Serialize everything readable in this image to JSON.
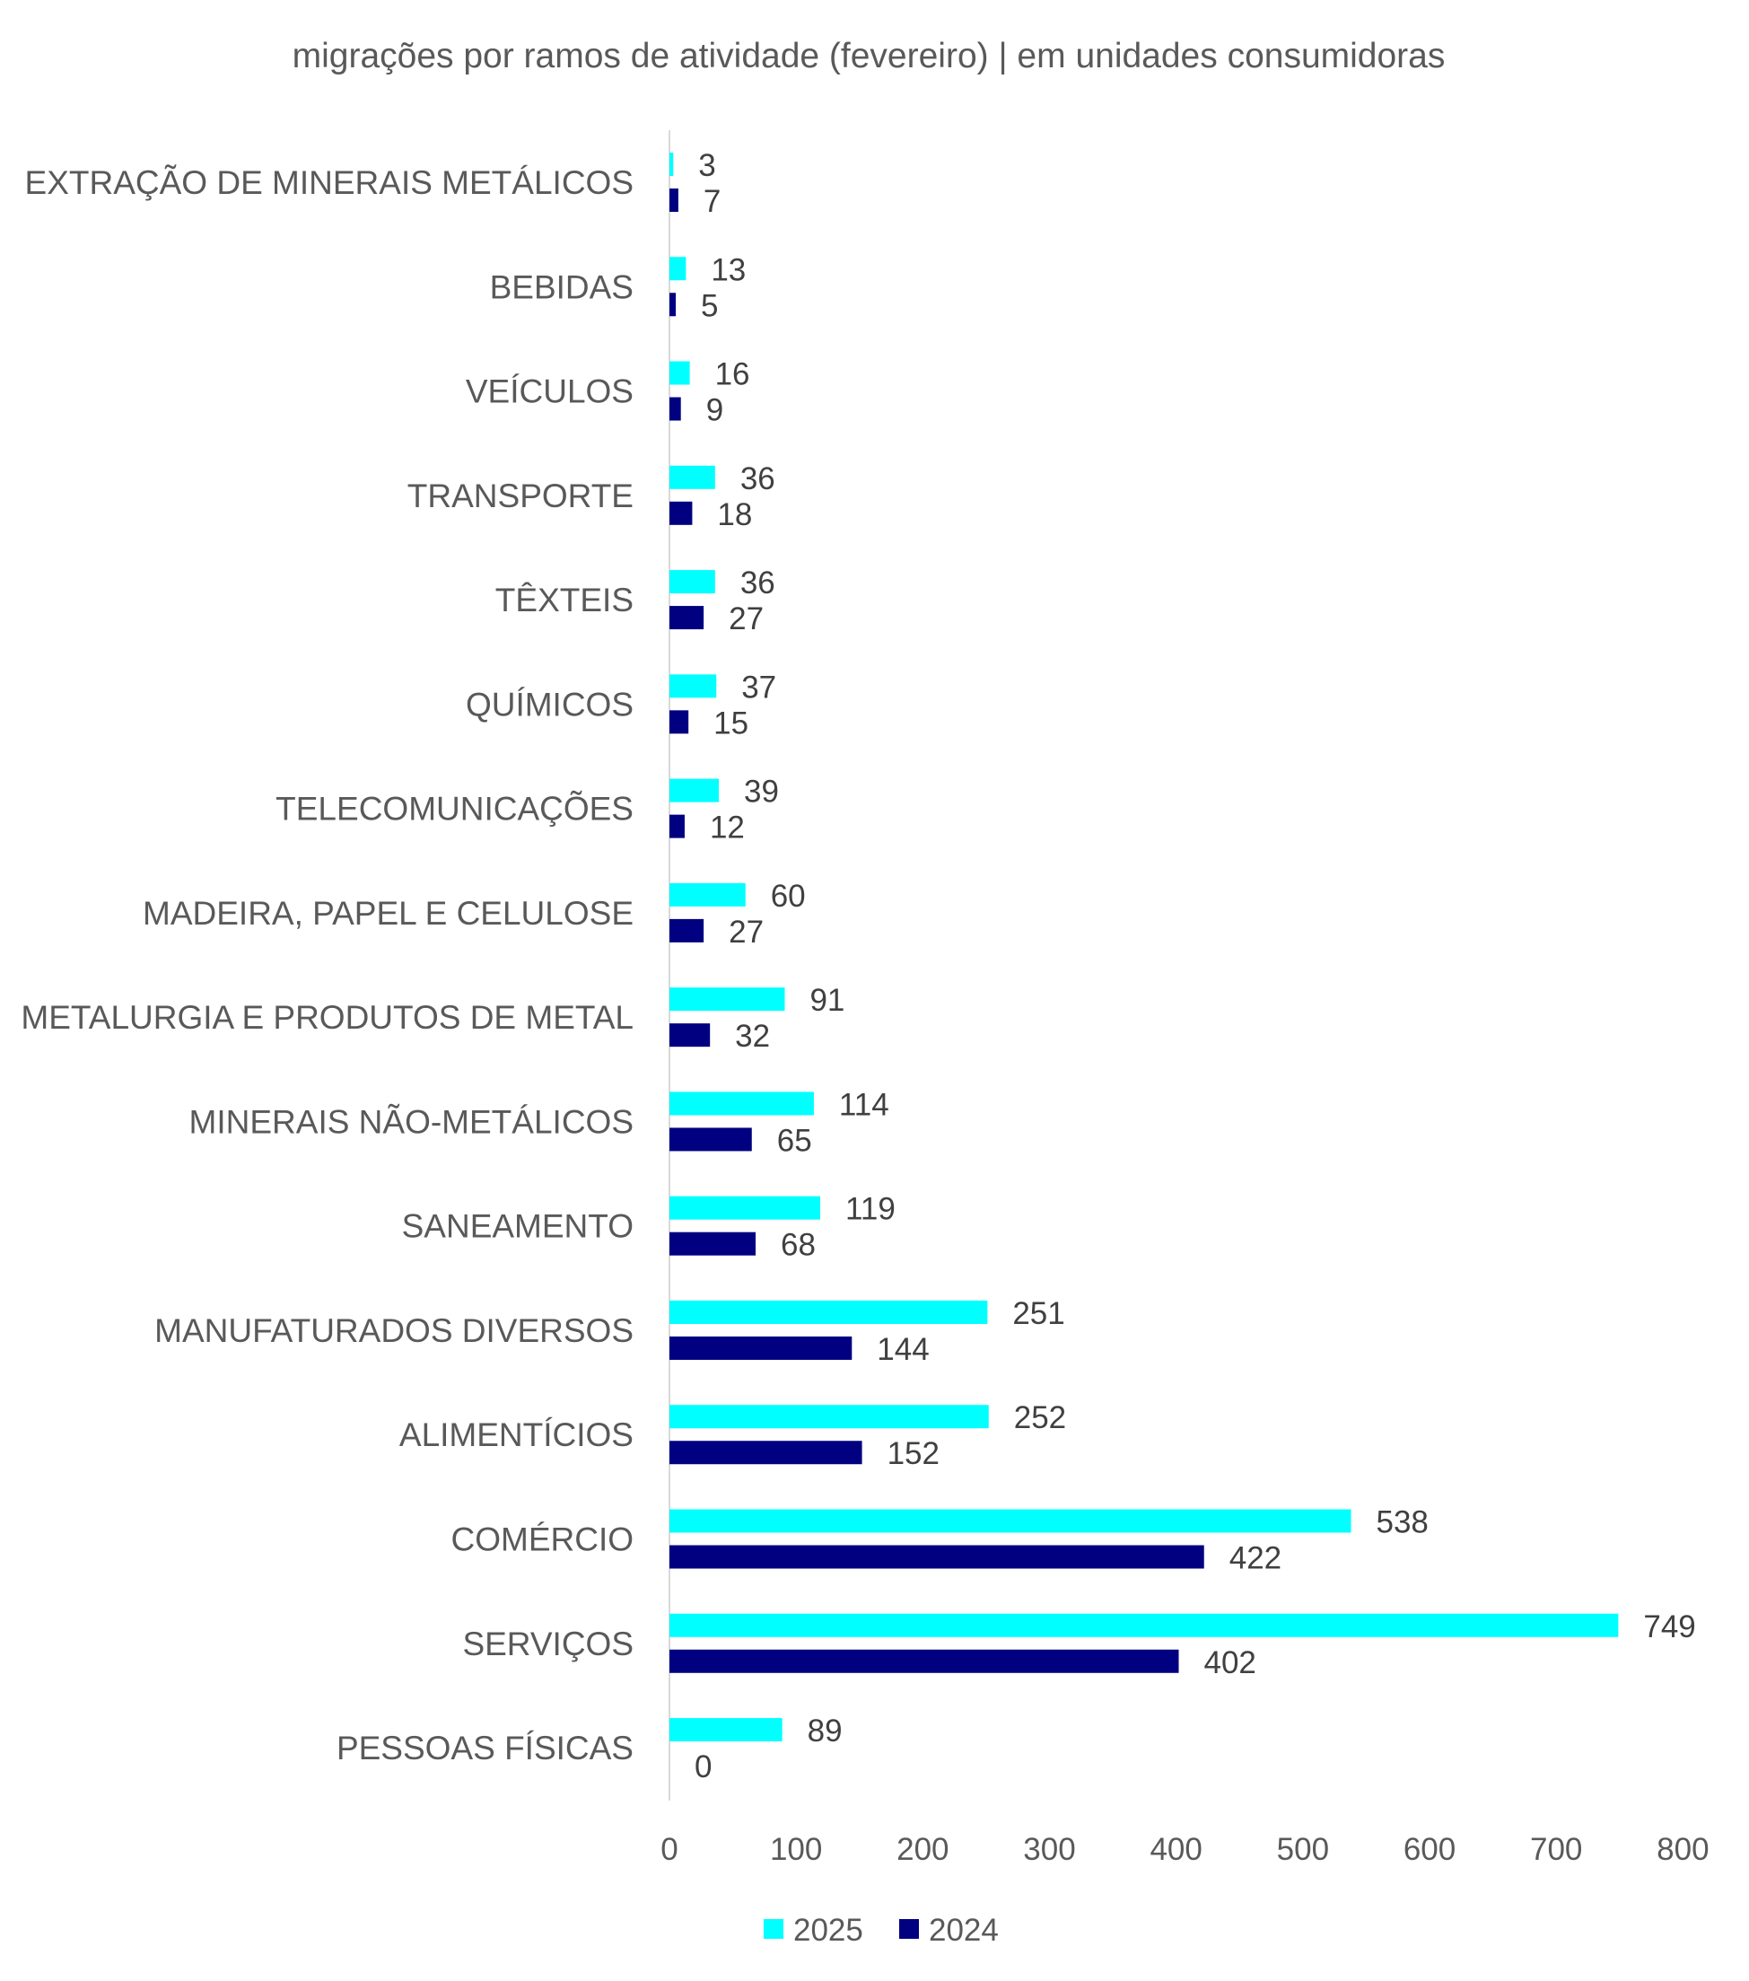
{
  "chart_data": {
    "type": "bar",
    "orientation": "horizontal",
    "title": "migrações por ramos de atividade (fevereiro) | em unidades consumidoras",
    "categories": [
      "EXTRAÇÃO DE MINERAIS METÁLICOS",
      "BEBIDAS",
      "VEÍCULOS",
      "TRANSPORTE",
      "TÊXTEIS",
      "QUÍMICOS",
      "TELECOMUNICAÇÕES",
      "MADEIRA, PAPEL E CELULOSE",
      "METALURGIA E PRODUTOS DE METAL",
      "MINERAIS NÃO-METÁLICOS",
      "SANEAMENTO",
      "MANUFATURADOS DIVERSOS",
      "ALIMENTÍCIOS",
      "COMÉRCIO",
      "SERVIÇOS",
      "PESSOAS FÍSICAS"
    ],
    "series": [
      {
        "name": "2025",
        "color": "#00FFFF",
        "values": [
          3,
          13,
          16,
          36,
          36,
          37,
          39,
          60,
          91,
          114,
          119,
          251,
          252,
          538,
          749,
          89
        ]
      },
      {
        "name": "2024",
        "color": "#000080",
        "values": [
          7,
          5,
          9,
          18,
          27,
          15,
          12,
          27,
          32,
          65,
          68,
          144,
          152,
          422,
          402,
          0
        ]
      }
    ],
    "xlim": [
      0,
      800
    ],
    "xticks": [
      0,
      100,
      200,
      300,
      400,
      500,
      600,
      700,
      800
    ],
    "xlabel": "",
    "ylabel": "",
    "grid": false,
    "legend": "bottom-center",
    "data_labels": true
  }
}
